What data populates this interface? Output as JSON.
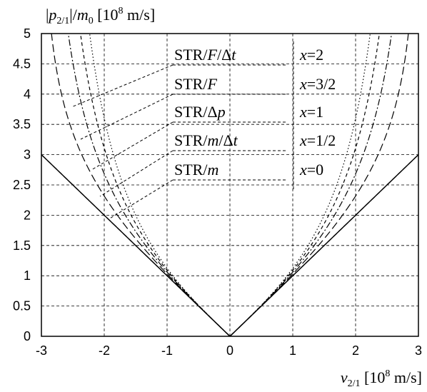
{
  "chart_data": {
    "type": "line",
    "ylabel": "|p2/1|/m0 [10^8 m/s]",
    "xlabel": "v2/1 [10^8 m/s]",
    "xlim": [
      -3,
      3
    ],
    "ylim": [
      0,
      5
    ],
    "xticks": [
      "-3",
      "-2",
      "-1",
      "0",
      "1",
      "2",
      "3"
    ],
    "yticks": [
      "0",
      "0.5",
      "1",
      "1.5",
      "2",
      "2.5",
      "3",
      "3.5",
      "4",
      "4.5",
      "5"
    ],
    "grid": true,
    "light_speed_units": 3,
    "series": [
      {
        "name": "STR/F/Δt",
        "x_label": "x=2",
        "exponent": 2,
        "line_style": "dotted"
      },
      {
        "name": "STR/F",
        "x_label": "x=3/2",
        "exponent": 1.5,
        "line_style": "dashed"
      },
      {
        "name": "STR/Δp",
        "x_label": "x=1",
        "exponent": 1,
        "line_style": "dash-dot"
      },
      {
        "name": "STR/m/Δt",
        "x_label": "x=1/2",
        "exponent": 0.5,
        "line_style": "long-dashed"
      },
      {
        "name": "STR/m",
        "x_label": "x=0",
        "exponent": 0,
        "line_style": "solid"
      }
    ]
  }
}
